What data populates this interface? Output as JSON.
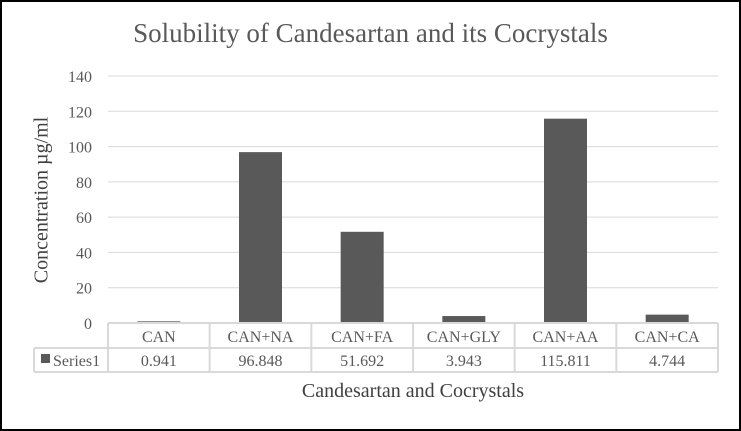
{
  "chart_data": {
    "type": "bar",
    "title": "Solubility of Candesartan and its Cocrystals",
    "xlabel": "Candesartan and Cocrystals",
    "ylabel": "Concentration µg/ml",
    "categories": [
      "CAN",
      "CAN+NA",
      "CAN+FA",
      "CAN+GLY",
      "CAN+AA",
      "CAN+CA"
    ],
    "series": [
      {
        "name": "Series1",
        "values": [
          0.941,
          96.848,
          51.692,
          3.943,
          115.811,
          4.744
        ]
      }
    ],
    "value_labels": [
      "0.941",
      "96.848",
      "51.692",
      "3.943",
      "115.811",
      "4.744"
    ],
    "ylim": [
      0,
      140
    ],
    "yticks": [
      0,
      20,
      40,
      60,
      80,
      100,
      120,
      140
    ],
    "grid": true,
    "legend": "data-table",
    "bar_color": "#595959"
  }
}
